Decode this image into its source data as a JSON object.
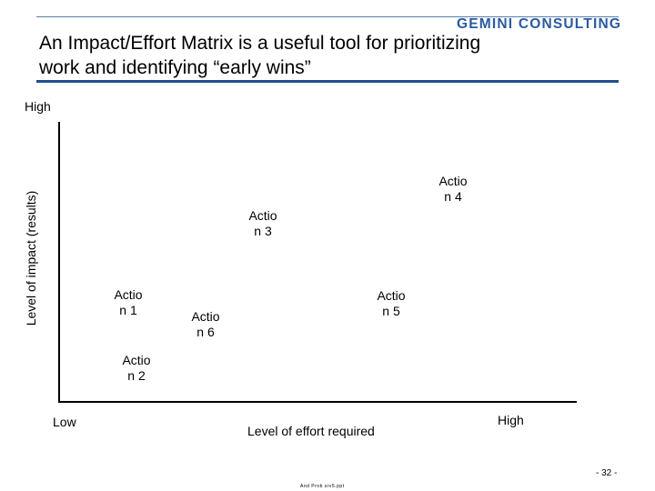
{
  "header": {
    "logo_text": "GEMINI CONSULTING",
    "title_line1": "An Impact/Effort Matrix is a useful tool for prioritizing",
    "title_line2": "work and identifying “early wins”"
  },
  "matrix": {
    "y_axis_title": "Level of impact (results)",
    "y_high_label": "High",
    "x_axis_title": "Level of effort required",
    "x_low_label": "Low",
    "x_high_label": "High",
    "actions": [
      {
        "line1": "Actio",
        "line2": "n 1"
      },
      {
        "line1": "Actio",
        "line2": "n 2"
      },
      {
        "line1": "Actio",
        "line2": "n 3"
      },
      {
        "line1": "Actio",
        "line2": "n 4"
      },
      {
        "line1": "Actio",
        "line2": "n 5"
      },
      {
        "line1": "Actio",
        "line2": "n 6"
      }
    ]
  },
  "footer": {
    "page_number": "- 32 -",
    "file_name": "And Prob srv5.ppt"
  },
  "colors": {
    "logo": "#2a5aa0",
    "rule": "#1f4e8c"
  }
}
